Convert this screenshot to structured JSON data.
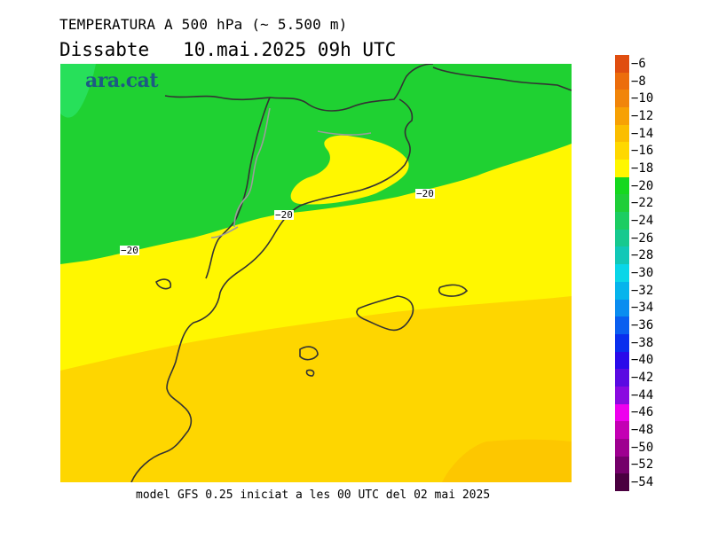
{
  "title": {
    "line1": "TEMPERATURA A 500 hPa (~ 5.500 m)",
    "day": "Dissabte",
    "datetime": "10.mai.2025 09h UTC"
  },
  "logo": "ara.cat",
  "footer": "model GFS 0.25 iniciat a les 00 UTC del 02 mai 2025",
  "contour_labels": [
    "-20",
    "-20",
    "-20"
  ],
  "legend": {
    "values": [
      "-6",
      "-8",
      "-10",
      "-12",
      "-14",
      "-16",
      "-18",
      "-20",
      "-22",
      "-24",
      "-26",
      "-28",
      "-30",
      "-32",
      "-34",
      "-36",
      "-38",
      "-40",
      "-42",
      "-44",
      "-46",
      "-48",
      "-50",
      "-52",
      "-54"
    ],
    "colors": [
      "#e04e10",
      "#ec6d0c",
      "#f1850a",
      "#f7a104",
      "#fbbe00",
      "#ffd800",
      "#fff700",
      "#15d81e",
      "#1fce38",
      "#1ccd62",
      "#17c98f",
      "#12c8b7",
      "#0ad6e8",
      "#06b4ec",
      "#0a8df0",
      "#0a5ff0",
      "#0a2fee",
      "#2a0bea",
      "#5a0be2",
      "#8a0be0",
      "#ee00ee",
      "#c400b4",
      "#9e0090",
      "#74006a",
      "#4a0040"
    ]
  },
  "map_colors": {
    "green": "#1fd132",
    "green_light": "#27e05a",
    "yellow_light": "#fff700",
    "yellow": "#ffe900",
    "orange_yellow": "#fed600",
    "orange": "#fdc700"
  }
}
